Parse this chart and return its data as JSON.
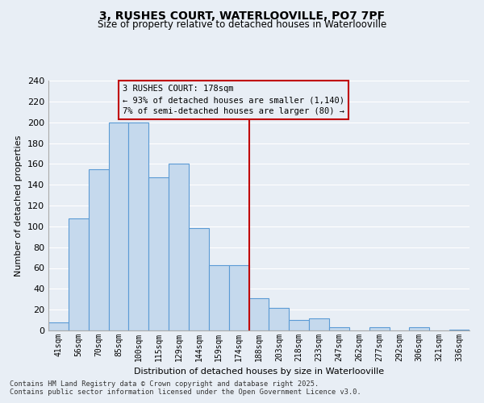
{
  "title1": "3, RUSHES COURT, WATERLOOVILLE, PO7 7PF",
  "title2": "Size of property relative to detached houses in Waterlooville",
  "xlabel": "Distribution of detached houses by size in Waterlooville",
  "ylabel": "Number of detached properties",
  "categories": [
    "41sqm",
    "56sqm",
    "70sqm",
    "85sqm",
    "100sqm",
    "115sqm",
    "129sqm",
    "144sqm",
    "159sqm",
    "174sqm",
    "188sqm",
    "203sqm",
    "218sqm",
    "233sqm",
    "247sqm",
    "262sqm",
    "277sqm",
    "292sqm",
    "306sqm",
    "321sqm",
    "336sqm"
  ],
  "values": [
    8,
    108,
    155,
    200,
    200,
    147,
    160,
    98,
    63,
    63,
    31,
    22,
    10,
    12,
    3,
    0,
    3,
    0,
    3,
    0,
    1
  ],
  "bar_color": "#c5d9ed",
  "bar_edge_color": "#5b9bd5",
  "vline_x": 9.5,
  "vline_color": "#c00000",
  "annotation_text": "3 RUSHES COURT: 178sqm\n← 93% of detached houses are smaller (1,140)\n7% of semi-detached houses are larger (80) →",
  "ylim": [
    0,
    240
  ],
  "yticks": [
    0,
    20,
    40,
    60,
    80,
    100,
    120,
    140,
    160,
    180,
    200,
    220,
    240
  ],
  "footer1": "Contains HM Land Registry data © Crown copyright and database right 2025.",
  "footer2": "Contains public sector information licensed under the Open Government Licence v3.0.",
  "bg_color": "#e8eef5",
  "grid_color": "#ffffff"
}
